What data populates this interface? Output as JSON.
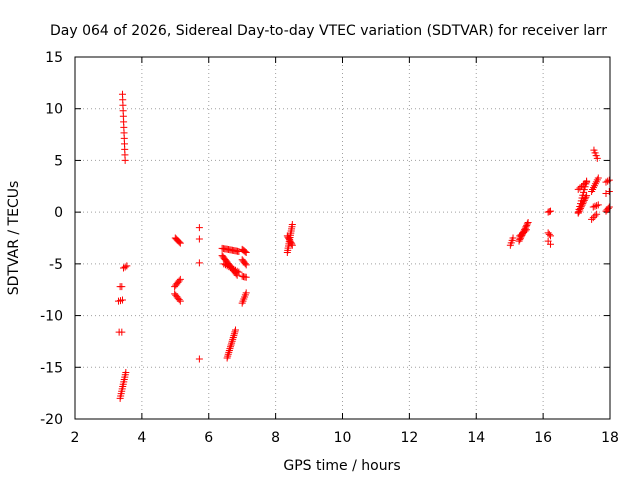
{
  "chart_data": {
    "type": "scatter",
    "title": "Day 064 of 2026, Sidereal Day-to-day VTEC variation (SDTVAR) for receiver larr",
    "xlabel": "GPS time / hours",
    "ylabel": "SDTVAR / TECUs",
    "xlim": [
      2,
      18
    ],
    "ylim": [
      -20,
      15
    ],
    "xticks": [
      "2",
      "4",
      "6",
      "8",
      "10",
      "12",
      "14",
      "16",
      "18"
    ],
    "yticks": [
      "15",
      "10",
      "5",
      "0",
      "-5",
      "-10",
      "-15",
      "-20"
    ],
    "grid": true,
    "marker": "plus",
    "color": "#ff0000",
    "segments": [
      {
        "x0": 3.42,
        "y0": 11.4,
        "x1": 3.5,
        "y1": 5.0,
        "n": 13
      },
      {
        "x0": 3.45,
        "y0": -5.4,
        "x1": 3.55,
        "y1": -5.2,
        "n": 3
      },
      {
        "x0": 3.35,
        "y0": -7.2,
        "x1": 3.4,
        "y1": -7.2,
        "n": 2
      },
      {
        "x0": 3.3,
        "y0": -8.6,
        "x1": 3.42,
        "y1": -8.5,
        "n": 3
      },
      {
        "x0": 3.32,
        "y0": -11.6,
        "x1": 3.4,
        "y1": -11.6,
        "n": 2
      },
      {
        "x0": 3.35,
        "y0": -18.0,
        "x1": 3.52,
        "y1": -15.5,
        "n": 12
      },
      {
        "x0": 5.0,
        "y0": -2.5,
        "x1": 5.15,
        "y1": -3.0,
        "n": 6
      },
      {
        "x0": 4.98,
        "y0": -7.2,
        "x1": 5.15,
        "y1": -6.5,
        "n": 6
      },
      {
        "x0": 4.98,
        "y0": -7.9,
        "x1": 5.15,
        "y1": -8.6,
        "n": 6
      },
      {
        "x0": 5.72,
        "y0": -1.5,
        "x1": 5.72,
        "y1": -1.5,
        "n": 1
      },
      {
        "x0": 5.72,
        "y0": -2.6,
        "x1": 5.72,
        "y1": -2.6,
        "n": 1
      },
      {
        "x0": 5.72,
        "y0": -4.9,
        "x1": 5.72,
        "y1": -4.9,
        "n": 1
      },
      {
        "x0": 5.72,
        "y0": -14.2,
        "x1": 5.72,
        "y1": -14.2,
        "n": 1
      },
      {
        "x0": 6.4,
        "y0": -3.5,
        "x1": 6.9,
        "y1": -3.8,
        "n": 14
      },
      {
        "x0": 6.4,
        "y0": -4.2,
        "x1": 6.85,
        "y1": -6.1,
        "n": 16
      },
      {
        "x0": 6.45,
        "y0": -5.0,
        "x1": 6.9,
        "y1": -5.8,
        "n": 10
      },
      {
        "x0": 6.55,
        "y0": -14.1,
        "x1": 6.8,
        "y1": -11.4,
        "n": 16
      },
      {
        "x0": 7.0,
        "y0": -3.6,
        "x1": 7.12,
        "y1": -3.9,
        "n": 5
      },
      {
        "x0": 7.0,
        "y0": -4.6,
        "x1": 7.12,
        "y1": -5.1,
        "n": 5
      },
      {
        "x0": 7.0,
        "y0": -6.2,
        "x1": 7.12,
        "y1": -6.3,
        "n": 4
      },
      {
        "x0": 7.0,
        "y0": -8.8,
        "x1": 7.12,
        "y1": -7.8,
        "n": 6
      },
      {
        "x0": 8.35,
        "y0": -3.9,
        "x1": 8.5,
        "y1": -1.2,
        "n": 14
      },
      {
        "x0": 8.35,
        "y0": -2.3,
        "x1": 8.5,
        "y1": -3.2,
        "n": 8
      },
      {
        "x0": 15.02,
        "y0": -3.2,
        "x1": 15.1,
        "y1": -2.5,
        "n": 4
      },
      {
        "x0": 15.28,
        "y0": -2.8,
        "x1": 15.55,
        "y1": -1.0,
        "n": 14
      },
      {
        "x0": 15.3,
        "y0": -2.3,
        "x1": 15.5,
        "y1": -1.7,
        "n": 6
      },
      {
        "x0": 16.15,
        "y0": 0.0,
        "x1": 16.22,
        "y1": 0.1,
        "n": 3
      },
      {
        "x0": 16.15,
        "y0": -2.0,
        "x1": 16.22,
        "y1": -2.3,
        "n": 3
      },
      {
        "x0": 16.15,
        "y0": -2.8,
        "x1": 16.22,
        "y1": -3.1,
        "n": 2
      },
      {
        "x0": 17.05,
        "y0": 0.0,
        "x1": 17.3,
        "y1": 3.0,
        "n": 12
      },
      {
        "x0": 17.05,
        "y0": -0.1,
        "x1": 17.3,
        "y1": 1.6,
        "n": 12
      },
      {
        "x0": 17.05,
        "y0": 2.2,
        "x1": 17.3,
        "y1": 2.9,
        "n": 6
      },
      {
        "x0": 17.45,
        "y0": 2.0,
        "x1": 17.65,
        "y1": 3.3,
        "n": 8
      },
      {
        "x0": 17.5,
        "y0": 0.5,
        "x1": 17.65,
        "y1": 0.7,
        "n": 4
      },
      {
        "x0": 17.45,
        "y0": -0.7,
        "x1": 17.6,
        "y1": -0.2,
        "n": 4
      },
      {
        "x0": 17.52,
        "y0": 6.0,
        "x1": 17.62,
        "y1": 5.2,
        "n": 4
      },
      {
        "x0": 17.88,
        "y0": 2.9,
        "x1": 17.98,
        "y1": 3.1,
        "n": 3
      },
      {
        "x0": 17.88,
        "y0": 1.8,
        "x1": 17.98,
        "y1": 2.0,
        "n": 2
      },
      {
        "x0": 17.88,
        "y0": 0.1,
        "x1": 17.98,
        "y1": 0.5,
        "n": 4
      }
    ]
  }
}
